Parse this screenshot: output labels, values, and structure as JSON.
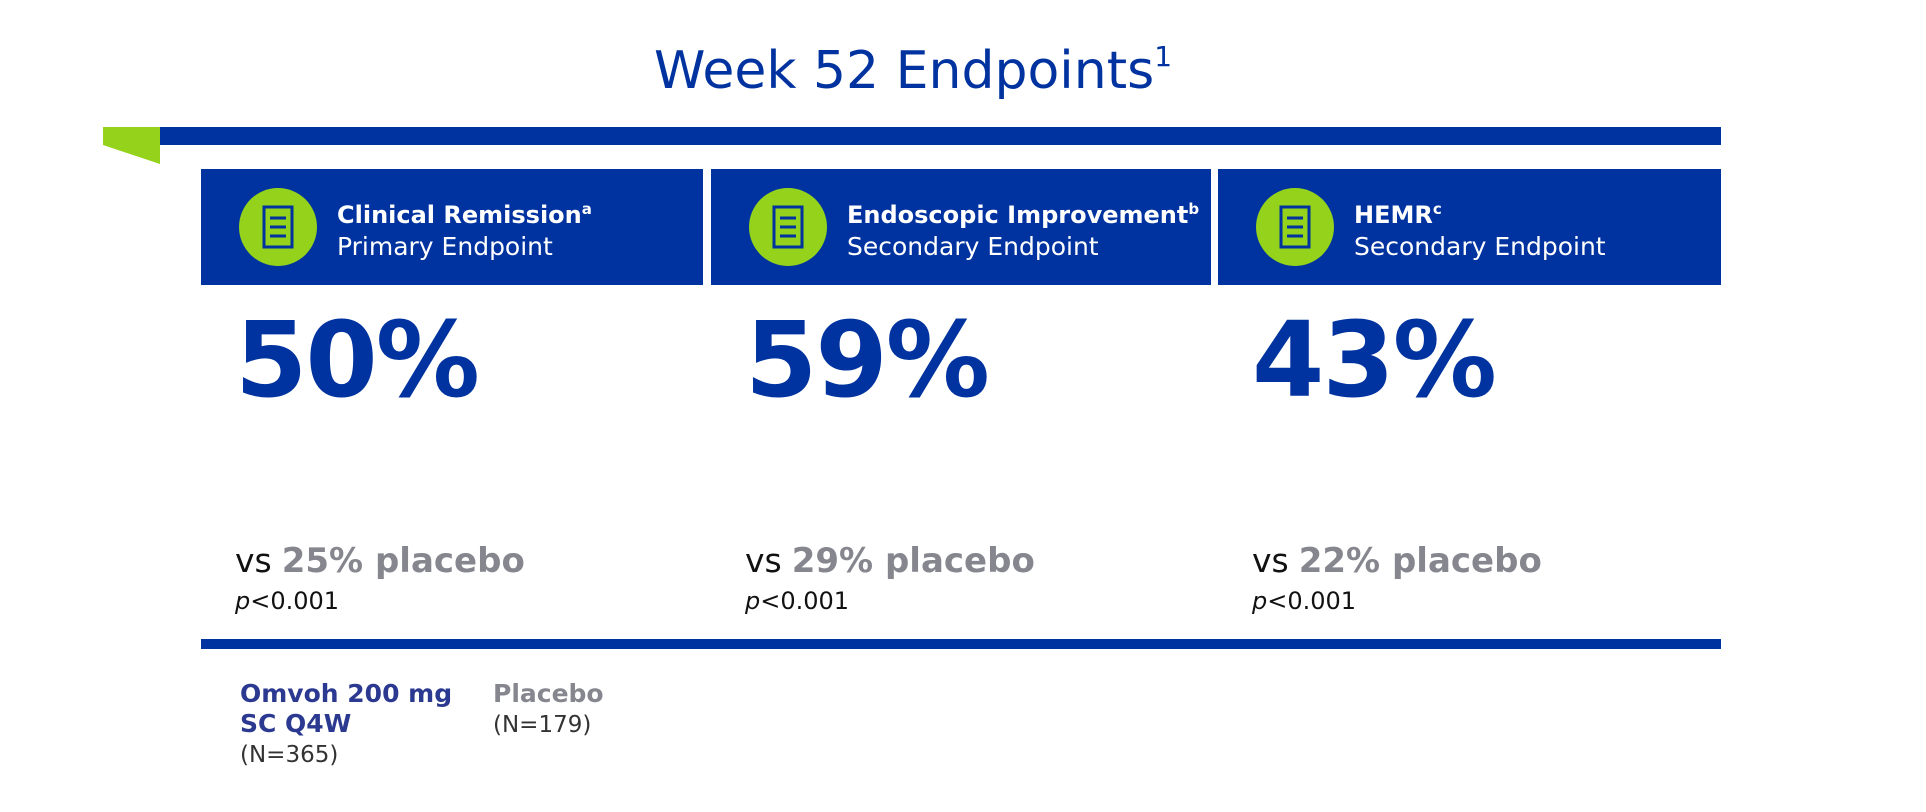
{
  "header": {
    "title": "Week 52 Endpoints",
    "title_sup": "1"
  },
  "cards": [
    {
      "title": "Clinical Remission",
      "sup": "a",
      "subtitle": "Primary Endpoint",
      "value": "50%",
      "vs": "vs",
      "placebo": "25% placebo",
      "p": "p",
      "p_value": "<0.001"
    },
    {
      "title": "Endoscopic Improvement",
      "sup": "b",
      "subtitle": "Secondary Endpoint",
      "value": "59%",
      "vs": "vs",
      "placebo": "29% placebo",
      "p": "p",
      "p_value": "<0.001"
    },
    {
      "title": "HEMR",
      "sup": "c",
      "subtitle": "Secondary Endpoint",
      "value": "43%",
      "vs": "vs",
      "placebo": "22% placebo",
      "p": "p",
      "p_value": "<0.001"
    }
  ],
  "legend": {
    "treatment": {
      "line1": "Omvoh 200 mg",
      "line2": "SC Q4W",
      "n": "(N=365)"
    },
    "placebo": {
      "name": "Placebo",
      "n": "(N=179)"
    }
  }
}
